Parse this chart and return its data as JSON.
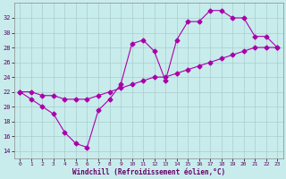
{
  "xlabel": "Windchill (Refroidissement éolien,°C)",
  "x_values": [
    0,
    1,
    2,
    3,
    4,
    5,
    6,
    7,
    8,
    9,
    10,
    11,
    12,
    13,
    14,
    15,
    16,
    17,
    18,
    19,
    20,
    21,
    22,
    23
  ],
  "line1": [
    22,
    21,
    20,
    19,
    16.5,
    15,
    14.5,
    19.5,
    21,
    23,
    28.5,
    29,
    27.5,
    23.5,
    29,
    31.5,
    31.5,
    33,
    33,
    32,
    32,
    29.5,
    29.5,
    28
  ],
  "line2": [
    22,
    22,
    21.5,
    21.5,
    21,
    21,
    21,
    21.5,
    22,
    22.5,
    23,
    23.5,
    24,
    24,
    24.5,
    25,
    25.5,
    26,
    26.5,
    27,
    27.5,
    28,
    28,
    28
  ],
  "line_color": "#aa00aa",
  "bg_color": "#c8ecec",
  "grid_color": "#aacccc",
  "ylim": [
    13,
    34
  ],
  "yticks": [
    14,
    16,
    18,
    20,
    22,
    24,
    26,
    28,
    30,
    32
  ],
  "xticks": [
    0,
    1,
    2,
    3,
    4,
    5,
    6,
    7,
    8,
    9,
    10,
    11,
    12,
    13,
    14,
    15,
    16,
    17,
    18,
    19,
    20,
    21,
    22,
    23
  ],
  "tick_color": "#660066",
  "label_color": "#660066"
}
